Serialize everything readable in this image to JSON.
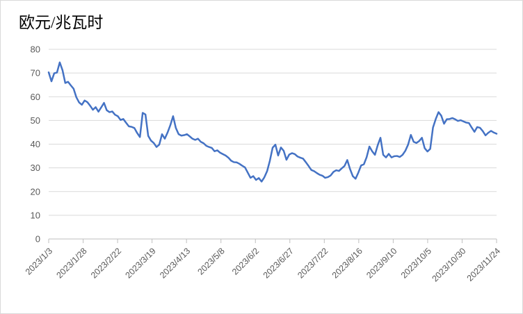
{
  "chart_data": {
    "type": "line",
    "title": "欧元/兆瓦时",
    "start_date": "2023/1/3",
    "sample_interval_days": 2,
    "x_tick_labels": [
      "2023/1/3",
      "2023/1/28",
      "2023/2/22",
      "2023/3/19",
      "2023/4/13",
      "2023/5/8",
      "2023/6/2",
      "2023/6/27",
      "2023/7/22",
      "2023/8/16",
      "2023/9/10",
      "2023/10/5",
      "2023/10/30",
      "2023/11/24"
    ],
    "y_tick_labels": [
      "0",
      "10",
      "20",
      "30",
      "40",
      "50",
      "60",
      "70",
      "80"
    ],
    "ylim": [
      0,
      80
    ],
    "grid": true,
    "legend": "none",
    "series": [
      {
        "name": "欧元/兆瓦时",
        "values": [
          70.3,
          66.5,
          69.9,
          70.2,
          74.5,
          71.2,
          65.8,
          66.3,
          64.8,
          63.4,
          59.8,
          57.6,
          56.6,
          58.4,
          57.7,
          56.2,
          54.5,
          55.6,
          53.7,
          55.5,
          57.4,
          54.3,
          53.5,
          53.8,
          52.4,
          51.8,
          50.2,
          50.6,
          49.0,
          47.5,
          47.3,
          46.8,
          44.7,
          43.0,
          53.2,
          52.5,
          43.5,
          41.5,
          40.5,
          38.8,
          39.8,
          44.2,
          42.3,
          44.9,
          48.0,
          51.8,
          46.8,
          44.2,
          43.6,
          43.8,
          44.2,
          43.3,
          42.3,
          41.8,
          42.3,
          41.0,
          40.4,
          39.3,
          38.8,
          38.4,
          37.0,
          37.4,
          36.4,
          35.8,
          35.2,
          34.3,
          33.0,
          32.4,
          32.3,
          31.7,
          30.9,
          30.2,
          28.0,
          25.8,
          26.5,
          24.9,
          25.7,
          24.2,
          26.0,
          28.6,
          33.0,
          38.5,
          39.8,
          35.2,
          38.6,
          37.2,
          33.4,
          35.6,
          36.2,
          35.8,
          34.8,
          34.3,
          33.9,
          32.4,
          30.8,
          29.1,
          28.6,
          27.8,
          27.1,
          26.7,
          25.8,
          26.1,
          26.8,
          28.3,
          29.0,
          28.7,
          29.8,
          30.8,
          33.3,
          29.5,
          26.5,
          25.4,
          28.0,
          31.0,
          31.5,
          34.5,
          39.0,
          37.0,
          35.5,
          39.5,
          42.7,
          35.5,
          34.4,
          35.9,
          34.4,
          34.9,
          35.0,
          34.6,
          35.5,
          37.2,
          39.8,
          43.9,
          41.0,
          40.5,
          41.3,
          42.7,
          38.3,
          36.9,
          38.0,
          47.0,
          50.6,
          53.5,
          52.0,
          48.6,
          50.5,
          50.6,
          51.0,
          50.5,
          49.8,
          50.1,
          49.6,
          49.1,
          48.9,
          47.0,
          45.2,
          47.2,
          46.9,
          45.5,
          43.7,
          44.8,
          45.6,
          44.9,
          44.4
        ]
      }
    ],
    "colors": {
      "line": "#4472C4",
      "gridline": "#D9D9D9",
      "axis_line": "#BFBFBF",
      "axis_label": "#595959",
      "title": "#000000",
      "background": "#FFFFFF",
      "border": "#D9D9D9"
    }
  }
}
